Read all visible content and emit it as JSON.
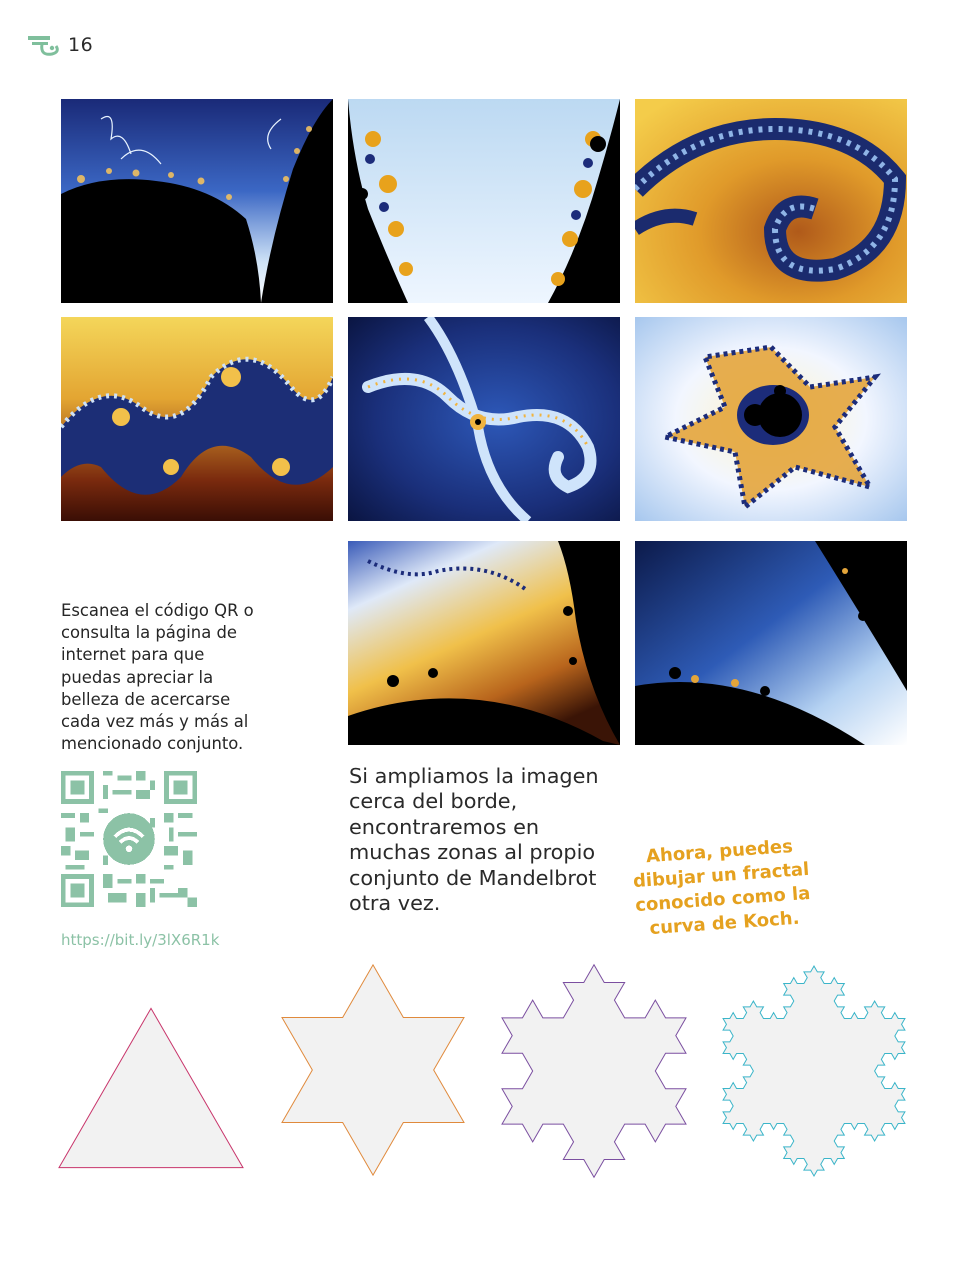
{
  "page": {
    "number": "16"
  },
  "header": {
    "logo_icon": "book-series-logo-icon",
    "accent_color": "#7fbf9c"
  },
  "fractal_gallery": {
    "images": [
      {
        "name": "mandelbrot-zoom-1",
        "palette": "blue-black"
      },
      {
        "name": "mandelbrot-zoom-2",
        "palette": "sky-gold"
      },
      {
        "name": "mandelbrot-zoom-3",
        "palette": "gold-navy-spiral"
      },
      {
        "name": "mandelbrot-zoom-4",
        "palette": "gold-navy-waves"
      },
      {
        "name": "mandelbrot-zoom-5",
        "palette": "navy-spiral"
      },
      {
        "name": "mandelbrot-zoom-6",
        "palette": "minibrot-gold"
      },
      {
        "name": "mandelbrot-zoom-7",
        "palette": "gold-black-edge"
      },
      {
        "name": "mandelbrot-zoom-8",
        "palette": "blue-black-edge"
      }
    ]
  },
  "qr_section": {
    "caption": "Escanea el código QR o consulta la página de internet para que puedas apreciar la belleza de acercarse cada vez más y más al mencionado conjunto.",
    "qr_icon": "qr-code-icon",
    "url": "https://bit.ly/3lX6R1k",
    "color": "#8cc2a6"
  },
  "zoom_text": "Si ampliamos la imagen cerca del borde, encontraremos en muchas zonas al propio conjunto de Mandelbrot otra vez.",
  "koch_callout": {
    "lines": [
      "Ahora, puedes",
      "dibujar un fractal",
      "conocido como la",
      "curva de Koch."
    ],
    "color": "#e5a11f"
  },
  "koch_shapes": [
    {
      "iteration": 0,
      "stroke": "#c8356b"
    },
    {
      "iteration": 1,
      "stroke": "#e08a3c"
    },
    {
      "iteration": 2,
      "stroke": "#7b4fa0"
    },
    {
      "iteration": 3,
      "stroke": "#3bb5c9"
    }
  ]
}
